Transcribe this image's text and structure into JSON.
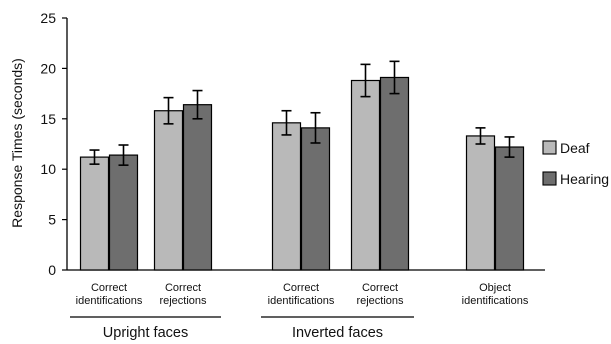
{
  "chart_data": {
    "type": "bar",
    "ylabel": "Response Times (seconds)",
    "ylim": [
      0,
      25
    ],
    "yticks": [
      "0",
      "5",
      "10",
      "15",
      "20",
      "25"
    ],
    "grid": false,
    "legend_position": "right",
    "groups": [
      {
        "label": "Upright faces",
        "categories": [
          {
            "lines": [
              "Correct",
              "identifications"
            ],
            "values": [
              11.2,
              11.4
            ],
            "errors": [
              0.7,
              1.0
            ]
          },
          {
            "lines": [
              "Correct",
              "rejections"
            ],
            "values": [
              15.8,
              16.4
            ],
            "errors": [
              1.3,
              1.4
            ]
          }
        ]
      },
      {
        "label": "Inverted faces",
        "categories": [
          {
            "lines": [
              "Correct",
              "identifications"
            ],
            "values": [
              14.6,
              14.1
            ],
            "errors": [
              1.2,
              1.5
            ]
          },
          {
            "lines": [
              "Correct",
              "rejections"
            ],
            "values": [
              18.8,
              19.1
            ],
            "errors": [
              1.6,
              1.6
            ]
          }
        ]
      },
      {
        "label": "",
        "categories": [
          {
            "lines": [
              "Object",
              "identifications"
            ],
            "values": [
              13.3,
              12.2
            ],
            "errors": [
              0.8,
              1.0
            ]
          }
        ]
      }
    ],
    "series": [
      {
        "name": "Deaf",
        "color": "#b9b9b9"
      },
      {
        "name": "Hearing",
        "color": "#6e6e6e"
      }
    ]
  }
}
